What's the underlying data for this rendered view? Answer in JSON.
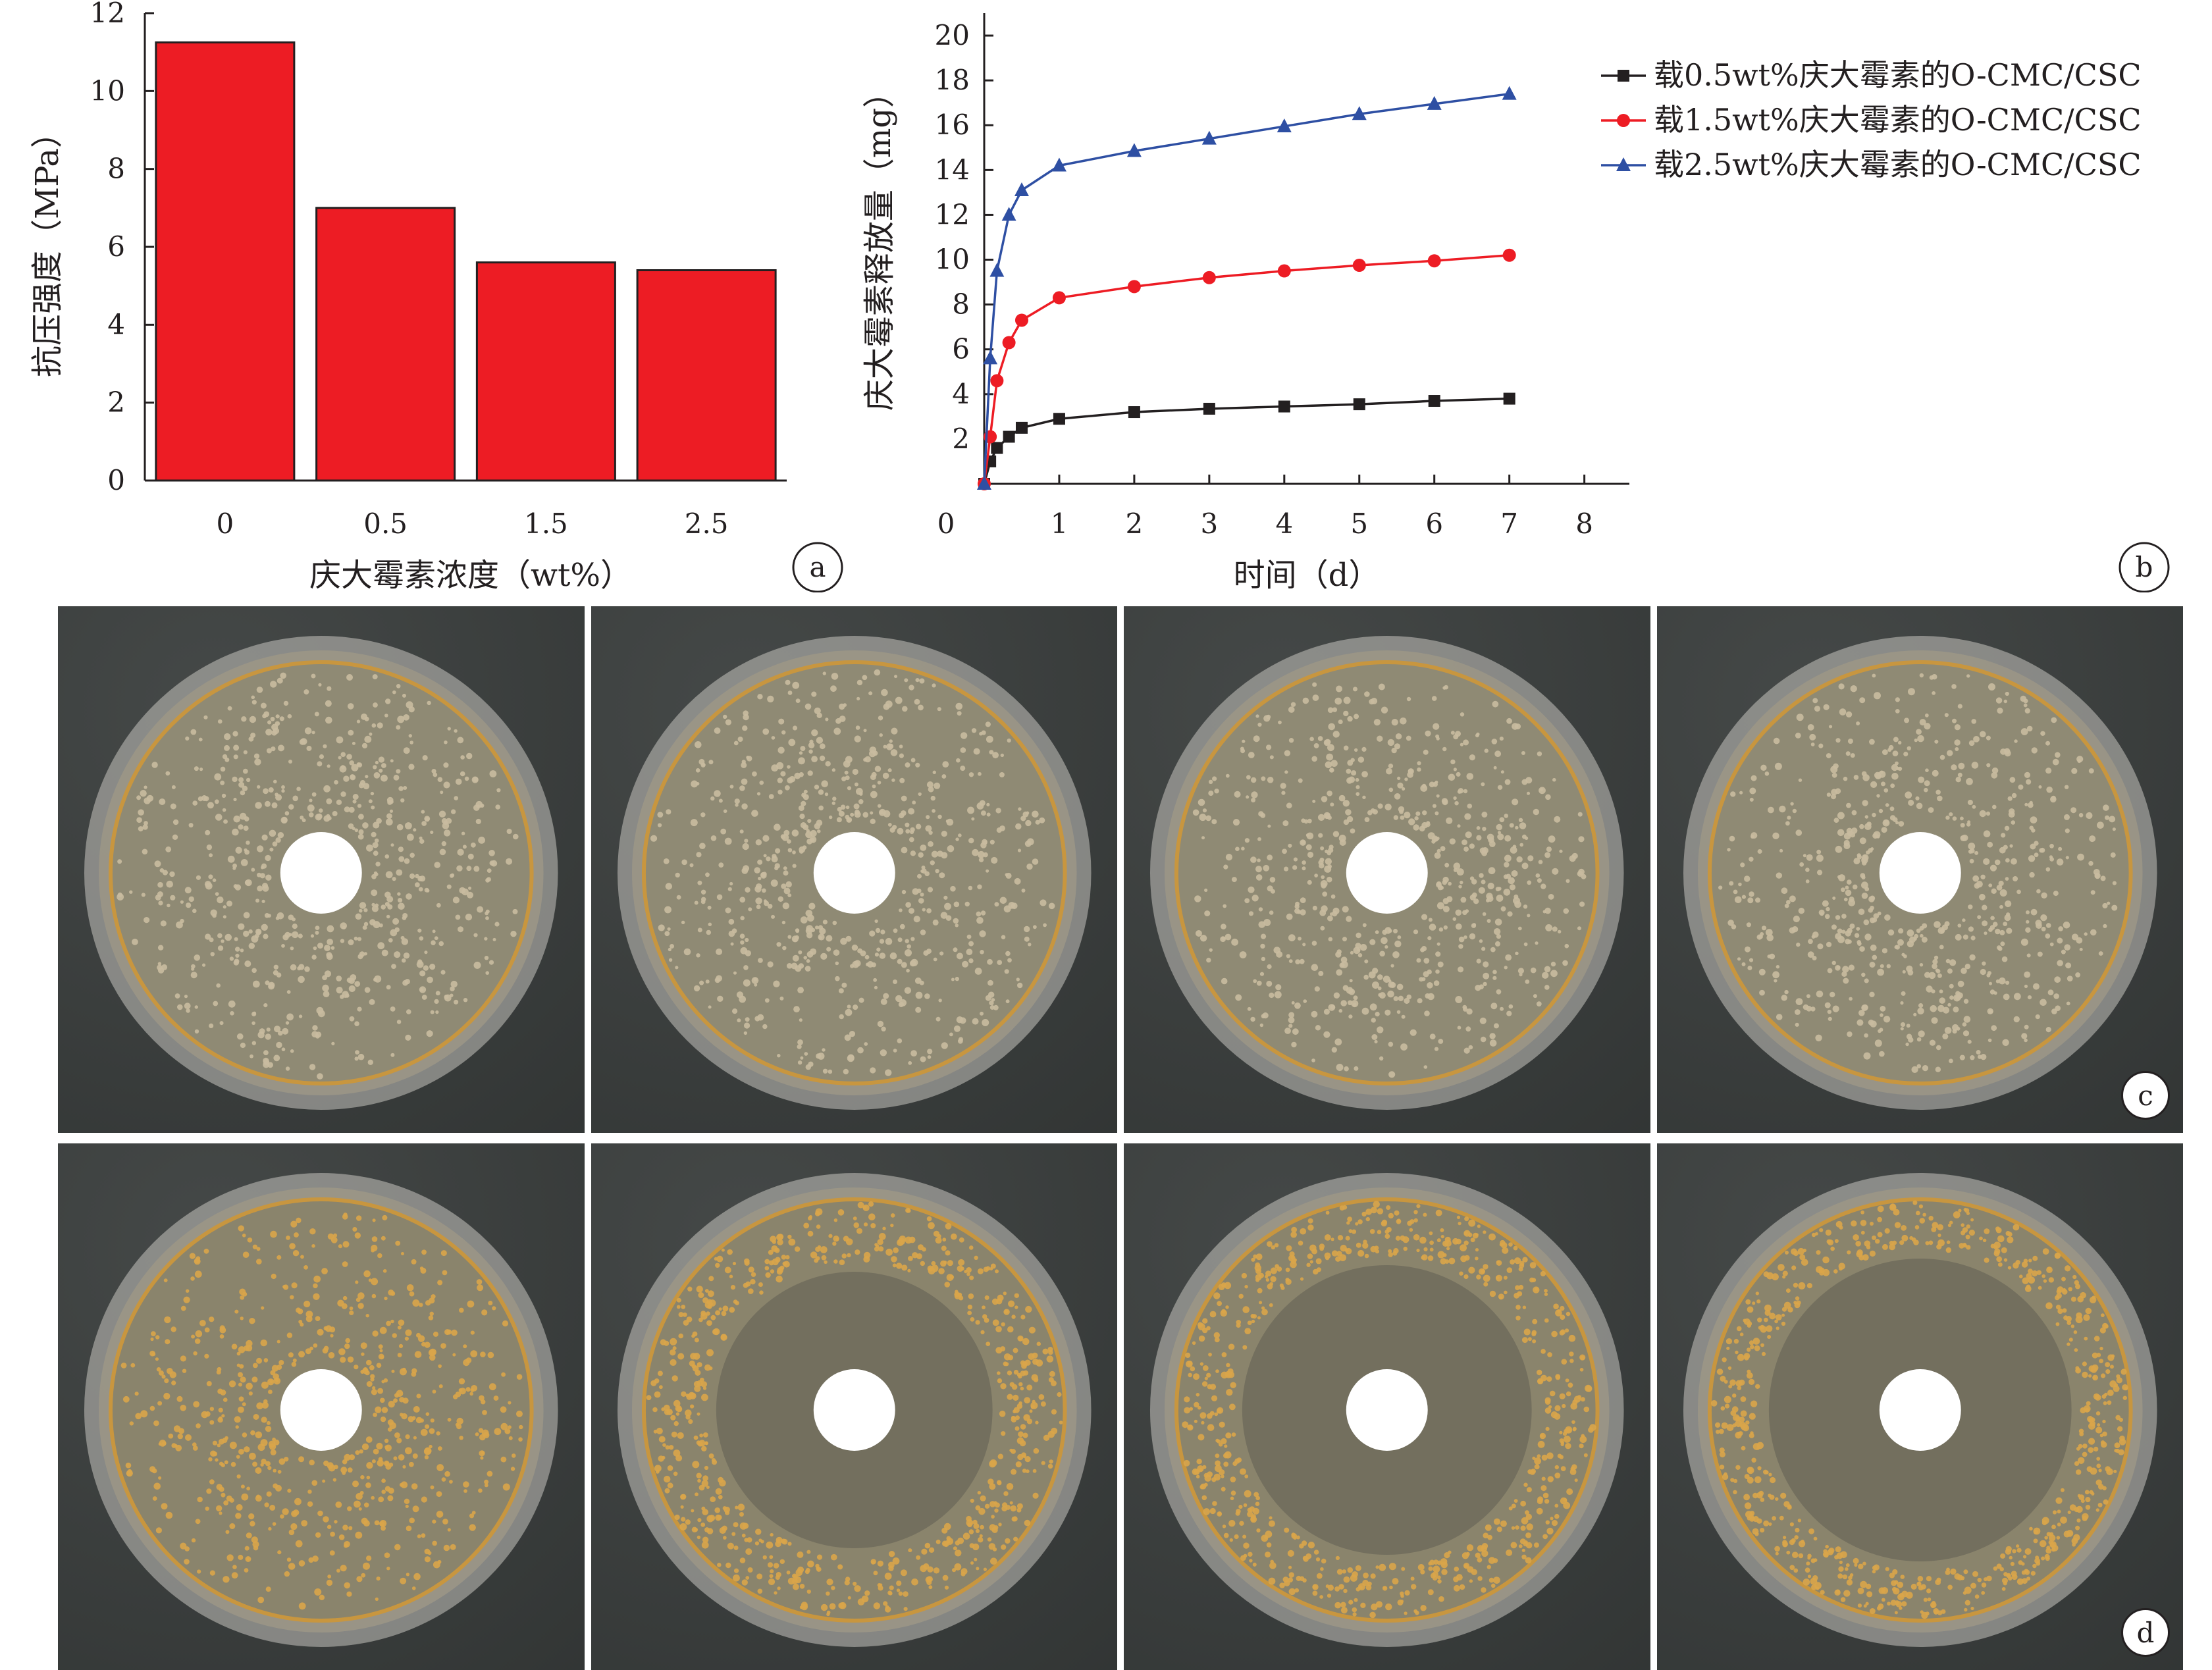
{
  "chart_data": [
    {
      "type": "bar",
      "panel_label": "a",
      "categories": [
        "0",
        "0.5",
        "1.5",
        "2.5"
      ],
      "values": [
        11.25,
        7.0,
        5.6,
        5.4
      ],
      "xlabel": "庆大霉素浓度（wt%）",
      "ylabel": "抗压强度（MPa）",
      "ylim": [
        0,
        12
      ],
      "yticks": [
        "0",
        "2",
        "4",
        "6",
        "8",
        "10",
        "12"
      ],
      "bar_color": "#ed1c24"
    },
    {
      "type": "line",
      "panel_label": "b",
      "xlabel": "时间（d）",
      "ylabel": "庆大霉素释放量（mg）",
      "xlim": [
        0,
        8
      ],
      "ylim": [
        0,
        21
      ],
      "xticks": [
        "0",
        "1",
        "2",
        "3",
        "4",
        "5",
        "6",
        "7",
        "8"
      ],
      "yticks": [
        "2",
        "4",
        "6",
        "8",
        "10",
        "12",
        "14",
        "16",
        "18",
        "20"
      ],
      "legend_position": "top-right",
      "series": [
        {
          "name": "载0.5wt%庆大霉素的O-CMC/CSC",
          "color": "#231f20",
          "marker": "square",
          "x": [
            0,
            0.08,
            0.17,
            0.33,
            0.5,
            1,
            2,
            3,
            4,
            5,
            6,
            7
          ],
          "y": [
            0,
            1.0,
            1.6,
            2.1,
            2.5,
            2.9,
            3.2,
            3.35,
            3.45,
            3.55,
            3.7,
            3.8
          ]
        },
        {
          "name": "载1.5wt%庆大霉素的O-CMC/CSC",
          "color": "#ed1c24",
          "marker": "circle",
          "x": [
            0,
            0.08,
            0.17,
            0.33,
            0.5,
            1,
            2,
            3,
            4,
            5,
            6,
            7
          ],
          "y": [
            0,
            2.1,
            4.6,
            6.3,
            7.3,
            8.3,
            8.8,
            9.2,
            9.5,
            9.75,
            9.95,
            10.2
          ]
        },
        {
          "name": "载2.5wt%庆大霉素的O-CMC/CSC",
          "color": "#2e4fa3",
          "marker": "triangle",
          "x": [
            0,
            0.08,
            0.17,
            0.33,
            0.5,
            1,
            2,
            3,
            4,
            5,
            6,
            7
          ],
          "y": [
            0,
            5.6,
            9.5,
            12.0,
            13.1,
            14.2,
            14.85,
            15.4,
            15.95,
            16.5,
            16.95,
            17.4
          ]
        }
      ]
    }
  ],
  "photo_panels": [
    {
      "panel_label": "c",
      "plates": 4,
      "colony_color": "#c9bba0"
    },
    {
      "panel_label": "d",
      "plates": 4,
      "colony_color": "#d9a54a"
    }
  ]
}
